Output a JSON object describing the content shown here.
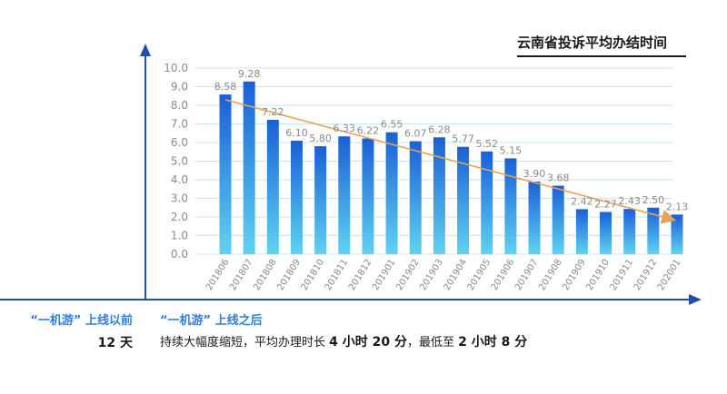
{
  "chart_data": {
    "type": "bar",
    "title": "云南省投诉平均办结时间",
    "categories": [
      "201806",
      "201807",
      "201808",
      "201809",
      "201810",
      "201811",
      "201812",
      "201901",
      "201902",
      "201903",
      "201904",
      "201905",
      "201906",
      "201907",
      "201908",
      "201909",
      "201910",
      "201911",
      "201912",
      "202001"
    ],
    "values": [
      8.58,
      9.28,
      7.22,
      6.1,
      5.8,
      6.33,
      6.22,
      6.55,
      6.07,
      6.28,
      5.77,
      5.52,
      5.15,
      3.9,
      3.68,
      2.42,
      2.27,
      2.43,
      2.5,
      2.13
    ],
    "value_labels": [
      "8.58",
      "9.28",
      "7.22",
      "6.10",
      "5.80",
      "6.33",
      "6.22",
      "6.55",
      "6.07",
      "6.28",
      "5.77",
      "5.52",
      "5.15",
      "3.90",
      "3.68",
      "2.42",
      "2.27",
      "2.43",
      "2.50",
      "2.13"
    ],
    "yticks": [
      "0.0",
      "1.0",
      "2.0",
      "3.0",
      "4.0",
      "5.0",
      "6.0",
      "7.0",
      "8.0",
      "9.0",
      "10.0"
    ],
    "ylim": [
      0,
      10
    ],
    "grid": true,
    "trend_line": {
      "from_value": 8.3,
      "to_value": 1.85,
      "color": "#e8a25a"
    },
    "bar_gradient": [
      "#5fd3f0",
      "#1a5fd8"
    ]
  },
  "captions": {
    "before_label": "“一机游” 上线以前",
    "before_value": "12 天",
    "after_label": "“一机游” 上线之后",
    "after_text_1": "持续大幅度缩短，平均办理时长 ",
    "after_bold_1": "4 小时 20 分",
    "after_text_2": "，最低至 ",
    "after_bold_2": "2 小时 8 分"
  },
  "colors": {
    "axis": "#1f4fa8",
    "grid": "#c9e4f2",
    "label": "#8a8a8a",
    "caption_blue": "#2f7fd8"
  }
}
